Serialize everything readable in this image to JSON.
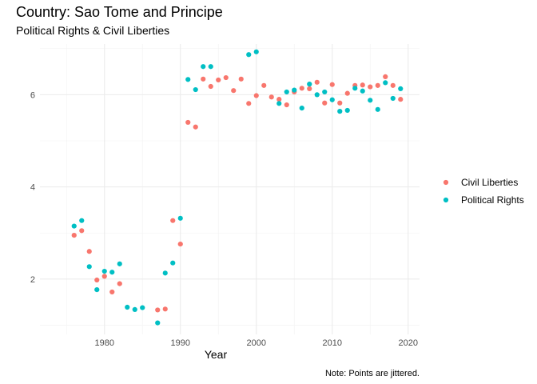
{
  "chart_data": {
    "type": "scatter",
    "title": "Country: Sao Tome and Principe",
    "subtitle": "Political Rights & Civil Liberties",
    "xlabel": "Year",
    "ylabel": "",
    "caption": "Note: Points are jittered.",
    "xlim": [
      1971.5,
      2021.5
    ],
    "ylim": [
      0.8,
      7.1
    ],
    "x_ticks": [
      1980,
      1990,
      2000,
      2010,
      2020
    ],
    "y_ticks": [
      2,
      4,
      6
    ],
    "grid": true,
    "legend_position": "right",
    "series": [
      {
        "name": "Civil Liberties",
        "color": "#F8766D",
        "points": [
          [
            1976,
            2.95
          ],
          [
            1977,
            3.05
          ],
          [
            1978,
            2.6
          ],
          [
            1979,
            1.98
          ],
          [
            1980,
            2.06
          ],
          [
            1981,
            1.72
          ],
          [
            1982,
            1.9
          ],
          [
            1987,
            1.33
          ],
          [
            1988,
            1.35
          ],
          [
            1989,
            3.27
          ],
          [
            1990,
            2.76
          ],
          [
            1991,
            5.4
          ],
          [
            1992,
            5.3
          ],
          [
            1993,
            6.34
          ],
          [
            1994,
            6.18
          ],
          [
            1995,
            6.32
          ],
          [
            1996,
            6.37
          ],
          [
            1997,
            6.09
          ],
          [
            1998,
            6.34
          ],
          [
            1999,
            5.81
          ],
          [
            2000,
            5.98
          ],
          [
            2001,
            6.2
          ],
          [
            2002,
            5.95
          ],
          [
            2003,
            5.9
          ],
          [
            2004,
            5.78
          ],
          [
            2005,
            6.06
          ],
          [
            2006,
            6.14
          ],
          [
            2007,
            6.13
          ],
          [
            2008,
            6.27
          ],
          [
            2009,
            5.82
          ],
          [
            2010,
            6.22
          ],
          [
            2011,
            5.82
          ],
          [
            2012,
            6.03
          ],
          [
            2013,
            6.2
          ],
          [
            2014,
            6.21
          ],
          [
            2015,
            6.17
          ],
          [
            2016,
            6.2
          ],
          [
            2017,
            6.39
          ],
          [
            2018,
            6.2
          ],
          [
            2019,
            5.9
          ]
        ]
      },
      {
        "name": "Political Rights",
        "color": "#00BFC4",
        "points": [
          [
            1976,
            3.15
          ],
          [
            1977,
            3.27
          ],
          [
            1978,
            2.27
          ],
          [
            1979,
            1.77
          ],
          [
            1980,
            2.17
          ],
          [
            1981,
            2.15
          ],
          [
            1982,
            2.33
          ],
          [
            1983,
            1.39
          ],
          [
            1984,
            1.34
          ],
          [
            1985,
            1.38
          ],
          [
            1987,
            1.05
          ],
          [
            1988,
            2.13
          ],
          [
            1989,
            2.35
          ],
          [
            1990,
            3.32
          ],
          [
            1991,
            6.33
          ],
          [
            1992,
            6.11
          ],
          [
            1993,
            6.61
          ],
          [
            1994,
            6.61
          ],
          [
            1999,
            6.87
          ],
          [
            2000,
            6.93
          ],
          [
            2003,
            5.81
          ],
          [
            2004,
            6.06
          ],
          [
            2005,
            6.1
          ],
          [
            2006,
            5.71
          ],
          [
            2007,
            6.23
          ],
          [
            2008,
            6.0
          ],
          [
            2009,
            6.06
          ],
          [
            2010,
            5.89
          ],
          [
            2011,
            5.64
          ],
          [
            2012,
            5.66
          ],
          [
            2013,
            6.14
          ],
          [
            2014,
            6.08
          ],
          [
            2015,
            5.88
          ],
          [
            2016,
            5.68
          ],
          [
            2017,
            6.26
          ],
          [
            2018,
            5.92
          ],
          [
            2019,
            6.13
          ]
        ]
      }
    ]
  }
}
